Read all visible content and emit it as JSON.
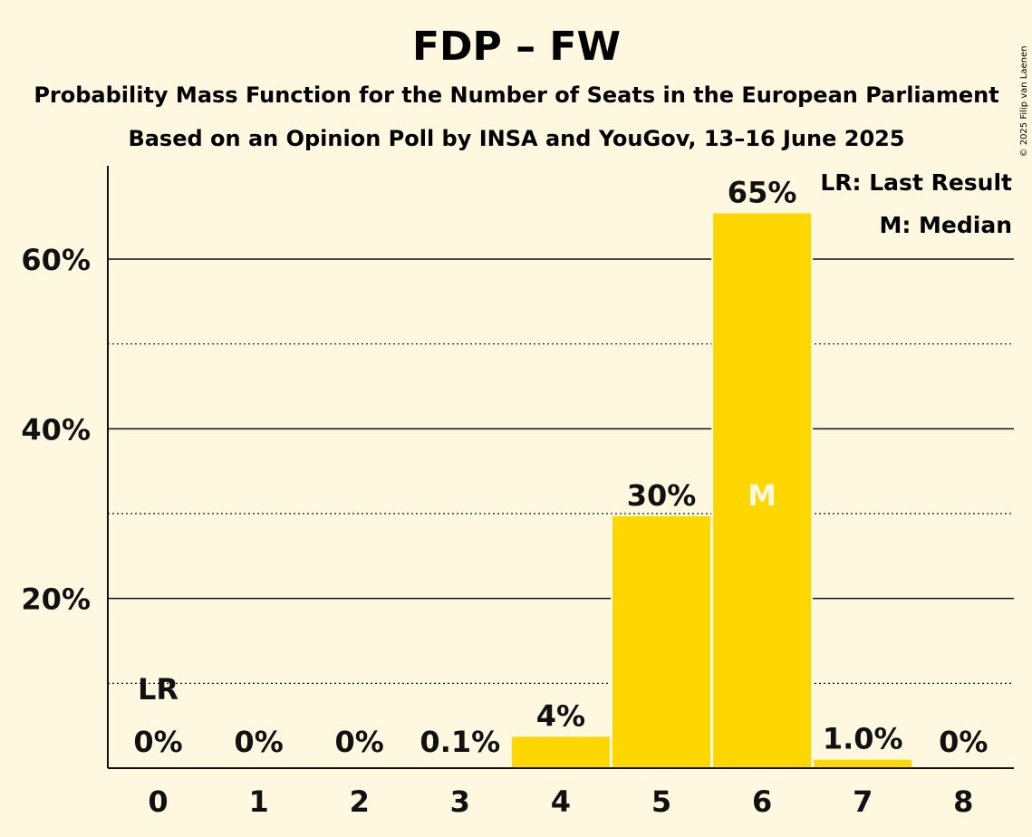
{
  "chart_data": {
    "type": "bar",
    "title": "FDP – FW",
    "subtitle_1": "Probability Mass Function for the Number of Seats in the European Parliament",
    "subtitle_2": "Based on an Opinion Poll by INSA and YouGov, 13–16 June 2025",
    "categories": [
      "0",
      "1",
      "2",
      "3",
      "4",
      "5",
      "6",
      "7",
      "8"
    ],
    "values": [
      0,
      0,
      0,
      0.1,
      3.7,
      29.7,
      65.4,
      1.0,
      0
    ],
    "value_labels": [
      "0%",
      "0%",
      "0%",
      "0.1%",
      "4%",
      "30%",
      "65%",
      "1.0%",
      "0%"
    ],
    "ylim": [
      0,
      71
    ],
    "yticks": [
      20,
      40,
      60
    ],
    "ytick_labels": [
      "20%",
      "40%",
      "60%"
    ],
    "minor_gridlines": [
      10,
      30,
      50
    ],
    "grid": true,
    "last_result_index": 0,
    "last_result_marker": "LR",
    "median_index": 6,
    "median_marker": "M",
    "legend": {
      "position": "top-right",
      "last_result": "LR: Last Result",
      "median": "M: Median"
    },
    "copyright": "© 2025 Filip van Laenen",
    "colors": {
      "bar": "#FFD700",
      "background": "#FFF8E1",
      "text": "#111111",
      "median_marker": "#FFF8E1"
    }
  }
}
